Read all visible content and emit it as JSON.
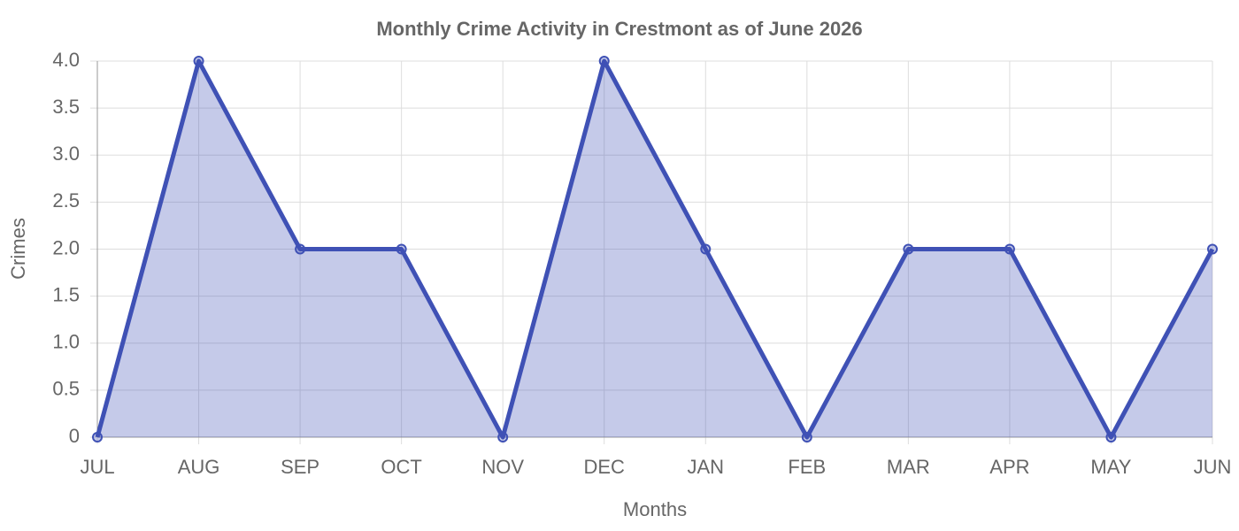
{
  "chart_data": {
    "type": "area",
    "title": "Monthly Crime Activity in Crestmont as of June 2026",
    "x_label": "Months",
    "y_label": "Crimes",
    "categories": [
      "JUL",
      "AUG",
      "SEP",
      "OCT",
      "NOV",
      "DEC",
      "JAN",
      "FEB",
      "MAR",
      "APR",
      "MAY",
      "JUN"
    ],
    "values": [
      0,
      4,
      2,
      2,
      0,
      4,
      2,
      0,
      2,
      2,
      0,
      2
    ],
    "color": "#3f51b5",
    "ylim": [
      0,
      4
    ],
    "yticks": [
      0,
      0.5,
      {
        "value": 1,
        "label": "1.0"
      },
      1.5,
      {
        "value": 2,
        "label": "2.0"
      },
      2.5,
      {
        "value": 3,
        "label": "3.0"
      },
      3.5,
      {
        "value": 4,
        "label": "4.0"
      }
    ],
    "grid": true
  }
}
